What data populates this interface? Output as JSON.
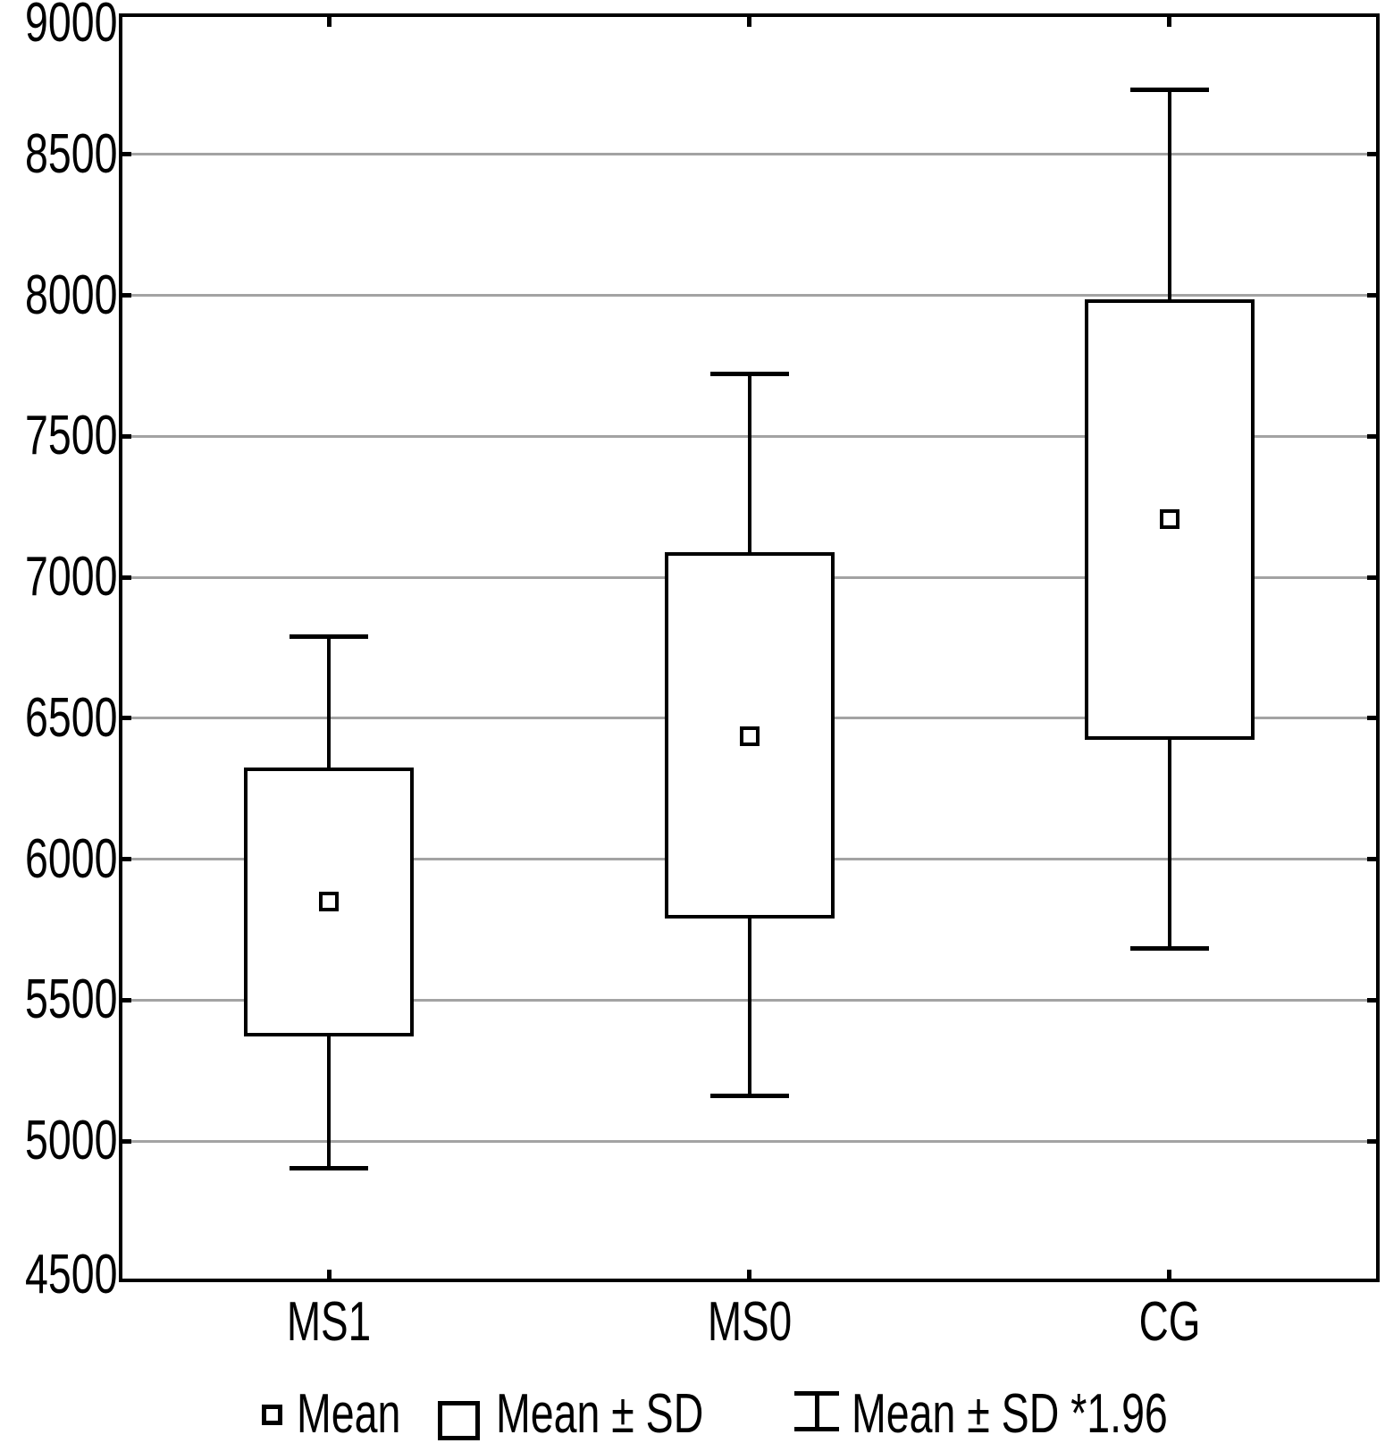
{
  "chart_data": {
    "type": "box",
    "title": "",
    "categories": [
      "MS1",
      "MS0",
      "CG"
    ],
    "y_axis": {
      "min": 4500,
      "max": 9000,
      "tick_step": 500,
      "tick_labels": [
        "4500",
        "5000",
        "5500",
        "6000",
        "6500",
        "7000",
        "7500",
        "8000",
        "8500",
        "9000"
      ]
    },
    "series": [
      {
        "category": "MS1",
        "mean": 5850,
        "box_low": 5370,
        "box_high": 6325,
        "whisker_low": 4905,
        "whisker_high": 6790
      },
      {
        "category": "MS0",
        "mean": 6435,
        "box_low": 5790,
        "box_high": 7090,
        "whisker_low": 5160,
        "whisker_high": 7720
      },
      {
        "category": "CG",
        "mean": 7205,
        "box_low": 6425,
        "box_high": 7985,
        "whisker_low": 5685,
        "whisker_high": 8730
      }
    ],
    "legend": [
      {
        "icon": "mean-marker-icon",
        "label": "Mean"
      },
      {
        "icon": "sd-box-icon",
        "label": "Mean ± SD"
      },
      {
        "icon": "whisker-icon",
        "label": "Mean ± SD *1.96"
      }
    ],
    "legend_position": "bottom",
    "grid": "horizontal-only",
    "colors": {
      "line": "#000000",
      "grid": "#a3a3a3",
      "background": "#ffffff",
      "text": "#000000"
    }
  }
}
